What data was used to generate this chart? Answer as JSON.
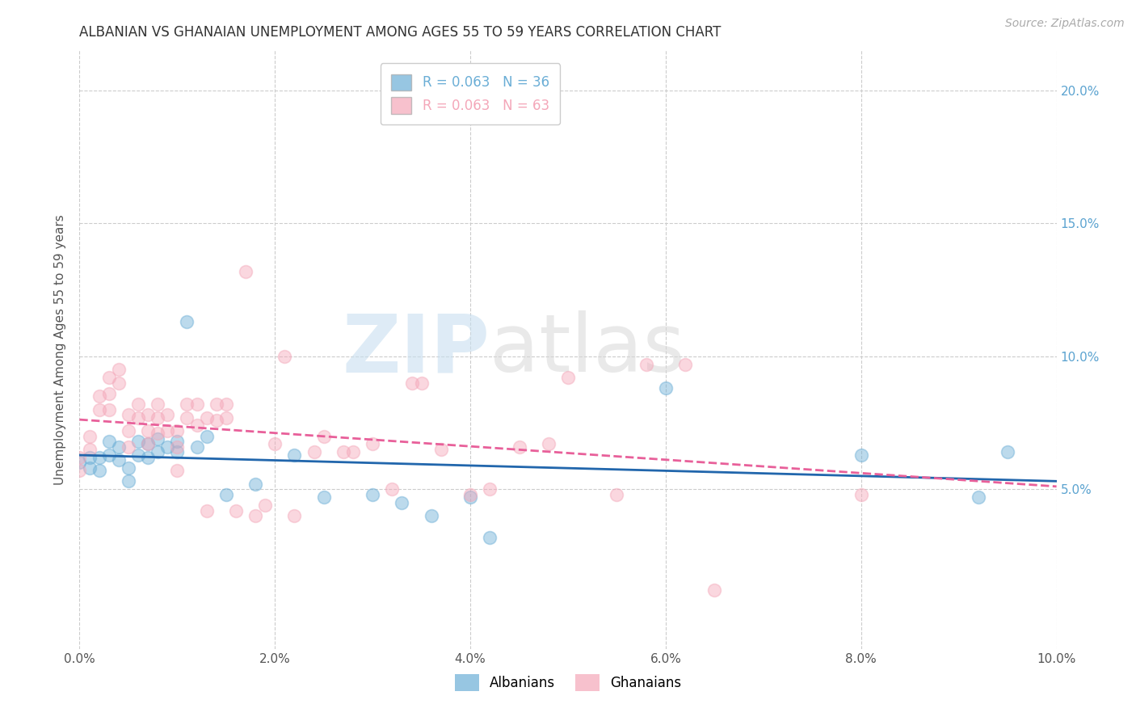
{
  "title": "ALBANIAN VS GHANAIAN UNEMPLOYMENT AMONG AGES 55 TO 59 YEARS CORRELATION CHART",
  "source": "Source: ZipAtlas.com",
  "ylabel": "Unemployment Among Ages 55 to 59 years",
  "xlim": [
    0.0,
    0.1
  ],
  "ylim": [
    -0.01,
    0.215
  ],
  "albanian_R": 0.063,
  "albanian_N": 36,
  "ghanaian_R": 0.063,
  "ghanaian_N": 63,
  "albanian_color": "#6baed6",
  "ghanaian_color": "#f4a7b9",
  "albanian_line_color": "#2166ac",
  "ghanaian_line_color": "#e8609a",
  "watermark_zip": "ZIP",
  "watermark_atlas": "atlas",
  "background_color": "#ffffff",
  "grid_color": "#cccccc",
  "title_color": "#333333",
  "axis_label_color": "#555555",
  "right_tick_color": "#5ba3d0",
  "scatter_size": 130,
  "scatter_alpha": 0.45,
  "albanian_x": [
    0.0,
    0.001,
    0.001,
    0.002,
    0.002,
    0.003,
    0.003,
    0.004,
    0.004,
    0.005,
    0.005,
    0.006,
    0.006,
    0.007,
    0.007,
    0.008,
    0.008,
    0.009,
    0.01,
    0.01,
    0.011,
    0.012,
    0.013,
    0.015,
    0.018,
    0.022,
    0.025,
    0.03,
    0.033,
    0.036,
    0.04,
    0.042,
    0.06,
    0.08,
    0.092,
    0.095
  ],
  "albanian_y": [
    0.06,
    0.062,
    0.058,
    0.062,
    0.057,
    0.068,
    0.063,
    0.066,
    0.061,
    0.058,
    0.053,
    0.068,
    0.063,
    0.067,
    0.062,
    0.069,
    0.064,
    0.066,
    0.068,
    0.064,
    0.113,
    0.066,
    0.07,
    0.048,
    0.052,
    0.063,
    0.047,
    0.048,
    0.045,
    0.04,
    0.047,
    0.032,
    0.088,
    0.063,
    0.047,
    0.064
  ],
  "ghanaian_x": [
    0.0,
    0.0,
    0.001,
    0.001,
    0.002,
    0.002,
    0.003,
    0.003,
    0.003,
    0.004,
    0.004,
    0.005,
    0.005,
    0.005,
    0.006,
    0.006,
    0.007,
    0.007,
    0.007,
    0.008,
    0.008,
    0.008,
    0.009,
    0.009,
    0.01,
    0.01,
    0.01,
    0.011,
    0.011,
    0.012,
    0.012,
    0.013,
    0.013,
    0.014,
    0.014,
    0.015,
    0.015,
    0.016,
    0.017,
    0.018,
    0.019,
    0.02,
    0.021,
    0.022,
    0.024,
    0.025,
    0.027,
    0.028,
    0.03,
    0.032,
    0.034,
    0.035,
    0.037,
    0.04,
    0.042,
    0.045,
    0.048,
    0.05,
    0.055,
    0.058,
    0.062,
    0.065,
    0.08
  ],
  "ghanaian_y": [
    0.062,
    0.057,
    0.07,
    0.065,
    0.085,
    0.08,
    0.092,
    0.086,
    0.08,
    0.095,
    0.09,
    0.078,
    0.072,
    0.066,
    0.082,
    0.077,
    0.078,
    0.072,
    0.067,
    0.082,
    0.077,
    0.071,
    0.078,
    0.072,
    0.072,
    0.066,
    0.057,
    0.082,
    0.077,
    0.082,
    0.074,
    0.077,
    0.042,
    0.082,
    0.076,
    0.082,
    0.077,
    0.042,
    0.132,
    0.04,
    0.044,
    0.067,
    0.1,
    0.04,
    0.064,
    0.07,
    0.064,
    0.064,
    0.067,
    0.05,
    0.09,
    0.09,
    0.065,
    0.048,
    0.05,
    0.066,
    0.067,
    0.092,
    0.048,
    0.097,
    0.097,
    0.012,
    0.048
  ]
}
